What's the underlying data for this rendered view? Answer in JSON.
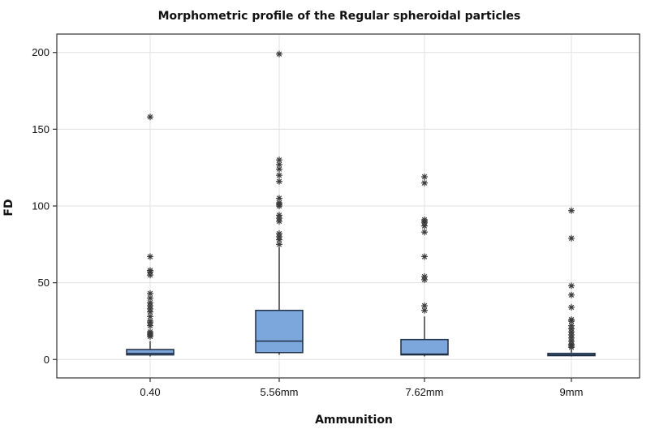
{
  "chart_data": {
    "type": "boxplot",
    "title": "Morphometric profile of the Regular spheroidal particles",
    "xlabel": "Ammunition",
    "ylabel": "FD",
    "ylim": [
      -12,
      212
    ],
    "yticks": [
      0,
      50,
      100,
      150,
      200
    ],
    "grid": true,
    "box_color": "#7ba7dc",
    "line_color": "#1f2f45",
    "categories": [
      "0.40",
      "5.56mm",
      "7.62mm",
      "9mm"
    ],
    "series": [
      {
        "name": "0.40",
        "whisker_low": 2,
        "q1": 3,
        "median": 4,
        "q3": 6.5,
        "whisker_high": 12,
        "outliers": [
          15,
          16,
          17,
          18,
          22,
          24,
          25,
          28,
          31,
          33,
          35,
          37,
          40,
          43,
          55,
          57,
          58,
          67,
          158
        ]
      },
      {
        "name": "5.56mm",
        "whisker_low": 3,
        "q1": 4.5,
        "median": 12,
        "q3": 32,
        "whisker_high": 73,
        "outliers": [
          75,
          78,
          80,
          82,
          90,
          92,
          94,
          100,
          101,
          102,
          105,
          116,
          120,
          124,
          127,
          130,
          199
        ]
      },
      {
        "name": "7.62mm",
        "whisker_low": 2,
        "q1": 3,
        "median": 3.5,
        "q3": 13,
        "whisker_high": 28,
        "outliers": [
          32,
          35,
          52,
          54,
          67,
          83,
          87,
          89,
          90,
          91,
          115,
          119
        ]
      },
      {
        "name": "9mm",
        "whisker_low": 2,
        "q1": 2.5,
        "median": 3,
        "q3": 4,
        "whisker_high": 7,
        "outliers": [
          8,
          9,
          10,
          12,
          14,
          16,
          18,
          20,
          22,
          25,
          26,
          34,
          42,
          48,
          79,
          97
        ]
      }
    ]
  }
}
